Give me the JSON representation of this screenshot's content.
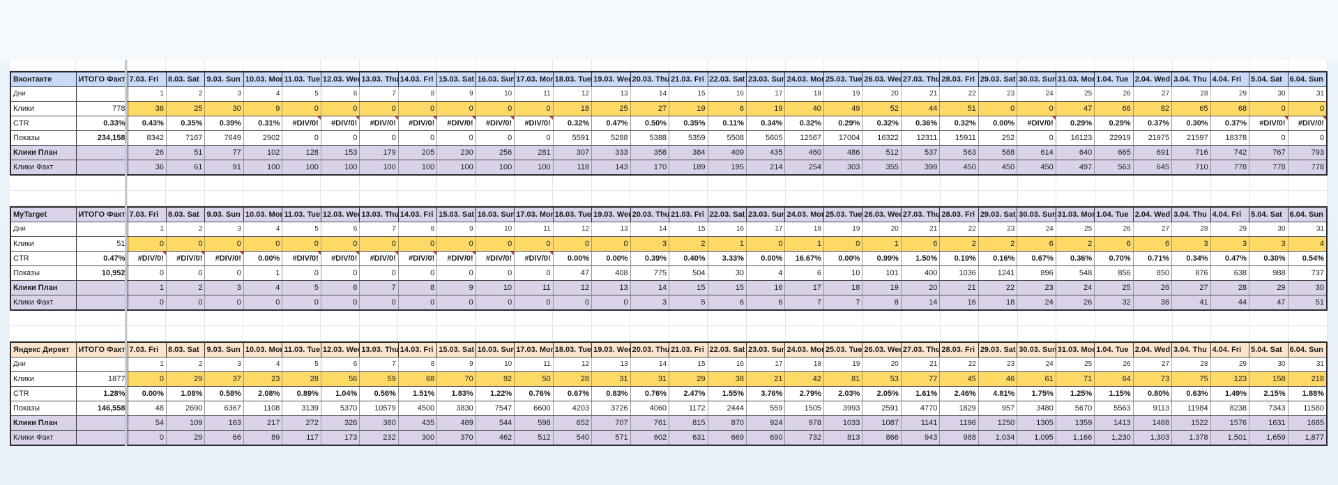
{
  "sheet": {
    "total_header": "ИТОГО Факт",
    "row_labels": {
      "days": "Дни",
      "clicks": "Клики",
      "ctr": "CTR",
      "impressions": "Показы",
      "clicks_plan": "Клики План",
      "clicks_fact": "Клики Факт"
    },
    "dates": [
      "7.03. Fri",
      "8.03. Sat",
      "9.03. Sun",
      "10.03. Mon",
      "11.03. Tue",
      "12.03. Wed",
      "13.03. Thu",
      "14.03. Fri",
      "15.03. Sat",
      "16.03. Sun",
      "17.03. Mon",
      "18.03. Tue",
      "19.03. Wed",
      "20.03. Thu",
      "21.03. Fri",
      "22.03. Sat",
      "23.03. Sun",
      "24.03. Mon",
      "25.03. Tue",
      "26.03. Wed",
      "27.03. Thu",
      "28.03. Fri",
      "29.03. Sat",
      "30.03. Sun",
      "31.03. Mon",
      "1.04. Tue",
      "2.04. Wed",
      "3.04. Thu",
      "4.04. Fri",
      "5.04. Sat",
      "6.04. Sun"
    ],
    "day_numbers": [
      1,
      2,
      3,
      4,
      5,
      6,
      7,
      8,
      9,
      10,
      11,
      12,
      13,
      14,
      15,
      16,
      17,
      18,
      19,
      20,
      21,
      22,
      23,
      24,
      25,
      26,
      27,
      28,
      29,
      30,
      31
    ],
    "colors": {
      "clicks_row_fill": "#ffd966",
      "plan_fact_fill": "#d9d2e9",
      "error_marker": "#c0392b"
    },
    "sections": [
      {
        "name": "Вконтакте",
        "header_color": "#c9daf8",
        "totals": {
          "clicks": "778",
          "ctr": "0.33%",
          "impressions": "234,158"
        },
        "clicks": [
          "36",
          "25",
          "30",
          "9",
          "0",
          "0",
          "0",
          "0",
          "0",
          "0",
          "0",
          "18",
          "25",
          "27",
          "19",
          "6",
          "19",
          "40",
          "49",
          "52",
          "44",
          "51",
          "0",
          "0",
          "47",
          "66",
          "82",
          "65",
          "68",
          "0",
          "0"
        ],
        "ctr": [
          "0.43%",
          "0.35%",
          "0.39%",
          "0.31%",
          "#DIV/0!",
          "#DIV/0!",
          "#DIV/0!",
          "#DIV/0!",
          "#DIV/0!",
          "#DIV/0!",
          "#DIV/0!",
          "0.32%",
          "0.47%",
          "0.50%",
          "0.35%",
          "0.11%",
          "0.34%",
          "0.32%",
          "0.29%",
          "0.32%",
          "0.36%",
          "0.32%",
          "0.00%",
          "#DIV/0!",
          "0.29%",
          "0.29%",
          "0.37%",
          "0.30%",
          "0.37%",
          "#DIV/0!",
          "#DIV/0!"
        ],
        "impressions": [
          "8342",
          "7167",
          "7649",
          "2902",
          "0",
          "0",
          "0",
          "0",
          "0",
          "0",
          "0",
          "5591",
          "5288",
          "5388",
          "5359",
          "5508",
          "5605",
          "12567",
          "17004",
          "16322",
          "12311",
          "15911",
          "252",
          "0",
          "16123",
          "22919",
          "21975",
          "21597",
          "18378",
          "0",
          "0"
        ],
        "clicks_plan": [
          "26",
          "51",
          "77",
          "102",
          "128",
          "153",
          "179",
          "205",
          "230",
          "256",
          "281",
          "307",
          "333",
          "358",
          "384",
          "409",
          "435",
          "460",
          "486",
          "512",
          "537",
          "563",
          "588",
          "614",
          "640",
          "665",
          "691",
          "716",
          "742",
          "767",
          "793"
        ],
        "clicks_fact": [
          "36",
          "61",
          "91",
          "100",
          "100",
          "100",
          "100",
          "100",
          "100",
          "100",
          "100",
          "118",
          "143",
          "170",
          "189",
          "195",
          "214",
          "254",
          "303",
          "355",
          "399",
          "450",
          "450",
          "450",
          "497",
          "563",
          "645",
          "710",
          "778",
          "778",
          "778"
        ]
      },
      {
        "name": "MyTarget",
        "header_color": "#d9d2e9",
        "totals": {
          "clicks": "51",
          "ctr": "0.47%",
          "impressions": "10,952"
        },
        "clicks": [
          "0",
          "0",
          "0",
          "0",
          "0",
          "0",
          "0",
          "0",
          "0",
          "0",
          "0",
          "0",
          "0",
          "3",
          "2",
          "1",
          "0",
          "1",
          "0",
          "1",
          "6",
          "2",
          "2",
          "6",
          "2",
          "6",
          "6",
          "3",
          "3",
          "3",
          "4"
        ],
        "ctr": [
          "#DIV/0!",
          "#DIV/0!",
          "#DIV/0!",
          "0.00%",
          "#DIV/0!",
          "#DIV/0!",
          "#DIV/0!",
          "#DIV/0!",
          "#DIV/0!",
          "#DIV/0!",
          "#DIV/0!",
          "0.00%",
          "0.00%",
          "0.39%",
          "0.40%",
          "3.33%",
          "0.00%",
          "16.67%",
          "0.00%",
          "0.99%",
          "1.50%",
          "0.19%",
          "0.16%",
          "0.67%",
          "0.36%",
          "0.70%",
          "0.71%",
          "0.34%",
          "0.47%",
          "0.30%",
          "0.54%"
        ],
        "impressions": [
          "0",
          "0",
          "0",
          "1",
          "0",
          "0",
          "0",
          "0",
          "0",
          "0",
          "0",
          "47",
          "408",
          "775",
          "504",
          "30",
          "4",
          "6",
          "10",
          "101",
          "400",
          "1036",
          "1241",
          "896",
          "548",
          "856",
          "850",
          "876",
          "638",
          "988",
          "737"
        ],
        "clicks_plan": [
          "1",
          "2",
          "3",
          "4",
          "5",
          "6",
          "7",
          "8",
          "9",
          "10",
          "11",
          "12",
          "13",
          "14",
          "15",
          "15",
          "16",
          "17",
          "18",
          "19",
          "20",
          "21",
          "22",
          "23",
          "24",
          "25",
          "26",
          "27",
          "28",
          "29",
          "30"
        ],
        "clicks_fact": [
          "0",
          "0",
          "0",
          "0",
          "0",
          "0",
          "0",
          "0",
          "0",
          "0",
          "0",
          "0",
          "0",
          "3",
          "5",
          "6",
          "6",
          "7",
          "7",
          "8",
          "14",
          "16",
          "18",
          "24",
          "26",
          "32",
          "38",
          "41",
          "44",
          "47",
          "51"
        ]
      },
      {
        "name": "Яндекс Директ",
        "header_color": "#fce5cd",
        "totals": {
          "clicks": "1877",
          "ctr": "1.28%",
          "impressions": "146,558"
        },
        "clicks": [
          "0",
          "29",
          "37",
          "23",
          "28",
          "56",
          "59",
          "68",
          "70",
          "92",
          "50",
          "28",
          "31",
          "31",
          "29",
          "38",
          "21",
          "42",
          "81",
          "53",
          "77",
          "45",
          "46",
          "61",
          "71",
          "64",
          "73",
          "75",
          "123",
          "158",
          "218"
        ],
        "ctr": [
          "0.00%",
          "1.08%",
          "0.58%",
          "2.08%",
          "0.89%",
          "1.04%",
          "0.56%",
          "1.51%",
          "1.83%",
          "1.22%",
          "0.76%",
          "0.67%",
          "0.83%",
          "0.76%",
          "2.47%",
          "1.55%",
          "3.76%",
          "2.79%",
          "2.03%",
          "2.05%",
          "1.61%",
          "2.46%",
          "4.81%",
          "1.75%",
          "1.25%",
          "1.15%",
          "0.80%",
          "0.63%",
          "1.49%",
          "2.15%",
          "1.88%"
        ],
        "impressions": [
          "48",
          "2690",
          "6367",
          "1108",
          "3139",
          "5370",
          "10579",
          "4500",
          "3830",
          "7547",
          "6600",
          "4203",
          "3726",
          "4060",
          "1172",
          "2444",
          "559",
          "1505",
          "3993",
          "2591",
          "4770",
          "1829",
          "957",
          "3480",
          "5670",
          "5563",
          "9113",
          "11984",
          "8238",
          "7343",
          "11580"
        ],
        "clicks_plan": [
          "54",
          "109",
          "163",
          "217",
          "272",
          "326",
          "380",
          "435",
          "489",
          "544",
          "598",
          "652",
          "707",
          "761",
          "815",
          "870",
          "924",
          "978",
          "1033",
          "1087",
          "1141",
          "1196",
          "1250",
          "1305",
          "1359",
          "1413",
          "1468",
          "1522",
          "1576",
          "1631",
          "1685"
        ],
        "clicks_fact": [
          "0",
          "29",
          "66",
          "89",
          "117",
          "173",
          "232",
          "300",
          "370",
          "462",
          "512",
          "540",
          "571",
          "602",
          "631",
          "669",
          "690",
          "732",
          "813",
          "866",
          "943",
          "988",
          "1,034",
          "1,095",
          "1,166",
          "1,230",
          "1,303",
          "1,378",
          "1,501",
          "1,659",
          "1,877"
        ]
      }
    ]
  }
}
